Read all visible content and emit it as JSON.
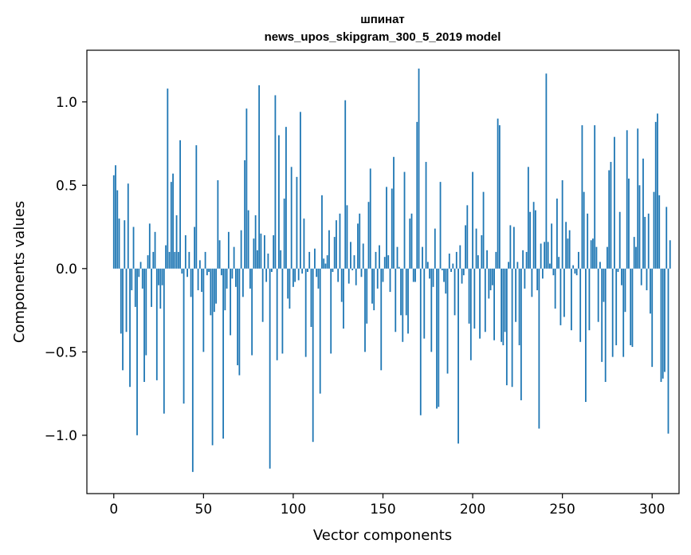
{
  "chart_data": {
    "type": "bar",
    "title_line1": "шпинат",
    "title_line2": "news_upos_skipgram_300_5_2019 model",
    "xlabel": "Vector components",
    "ylabel": "Components values",
    "xlim": [
      -15,
      315
    ],
    "ylim": [
      -1.35,
      1.31
    ],
    "xticks": [
      0,
      50,
      100,
      150,
      200,
      250,
      300
    ],
    "xtick_labels": [
      "0",
      "50",
      "100",
      "150",
      "200",
      "250",
      "300"
    ],
    "yticks": [
      1.0,
      0.5,
      0.0,
      -0.5,
      -1.0
    ],
    "ytick_labels": [
      "1.0",
      "0.5",
      "0.0",
      "−0.5",
      "−1.0"
    ],
    "bar_color": "#1f77b4",
    "values": [
      0.56,
      0.62,
      0.47,
      0.3,
      -0.39,
      -0.61,
      0.29,
      -0.38,
      0.51,
      -0.71,
      -0.13,
      0.25,
      -0.23,
      -1.0,
      -0.05,
      0.04,
      -0.12,
      -0.68,
      -0.52,
      0.08,
      0.27,
      -0.23,
      0.1,
      0.22,
      -0.67,
      -0.1,
      -0.24,
      -0.1,
      -0.87,
      0.14,
      1.08,
      0.1,
      0.52,
      0.57,
      0.1,
      0.32,
      0.1,
      0.77,
      -0.03,
      -0.81,
      0.2,
      -0.05,
      0.1,
      -0.17,
      -1.22,
      0.25,
      0.74,
      -0.13,
      0.05,
      -0.14,
      -0.5,
      0.1,
      -0.04,
      -0.02,
      -0.28,
      -1.06,
      -0.26,
      -0.21,
      0.53,
      0.17,
      -0.04,
      -1.02,
      -0.25,
      -0.12,
      0.22,
      -0.4,
      -0.06,
      0.13,
      -0.11,
      -0.58,
      -0.64,
      0.23,
      -0.17,
      0.65,
      0.96,
      0.35,
      -0.12,
      -0.52,
      0.18,
      0.32,
      0.11,
      1.1,
      0.21,
      -0.32,
      0.2,
      -0.08,
      0.09,
      -1.2,
      -0.02,
      0.2,
      1.04,
      -0.55,
      0.8,
      0.11,
      -0.51,
      0.42,
      0.85,
      -0.18,
      -0.24,
      0.61,
      -0.11,
      -0.08,
      0.55,
      -0.07,
      0.94,
      -0.03,
      0.3,
      -0.53,
      -0.02,
      0.1,
      -0.35,
      -1.04,
      0.12,
      -0.05,
      -0.12,
      -0.75,
      0.44,
      0.06,
      0.03,
      0.08,
      0.23,
      -0.51,
      -0.02,
      0.19,
      0.29,
      -0.08,
      0.33,
      -0.2,
      -0.36,
      1.01,
      0.38,
      -0.09,
      0.16,
      -0.01,
      0.08,
      -0.1,
      0.27,
      0.33,
      -0.05,
      0.15,
      -0.5,
      -0.33,
      0.4,
      0.6,
      -0.21,
      -0.25,
      0.1,
      -0.12,
      0.14,
      -0.61,
      -0.08,
      0.07,
      0.49,
      0.08,
      -0.14,
      0.48,
      0.67,
      -0.38,
      0.13,
      0.01,
      -0.28,
      -0.44,
      0.58,
      -0.28,
      -0.39,
      0.3,
      0.33,
      -0.08,
      -0.08,
      0.88,
      1.2,
      -0.88,
      0.13,
      -0.42,
      0.64,
      0.04,
      -0.06,
      -0.5,
      -0.11,
      0.24,
      -0.84,
      -0.83,
      0.52,
      -0.01,
      -0.08,
      -0.15,
      -0.63,
      0.09,
      -0.02,
      0.03,
      -0.28,
      0.1,
      -1.05,
      0.14,
      -0.09,
      -0.04,
      0.26,
      0.38,
      -0.33,
      -0.55,
      0.58,
      -0.36,
      0.24,
      0.08,
      -0.42,
      0.2,
      0.46,
      -0.38,
      0.11,
      -0.18,
      -0.13,
      -0.1,
      -0.43,
      0.1,
      0.9,
      0.86,
      -0.44,
      -0.46,
      -0.38,
      -0.7,
      0.04,
      0.26,
      -0.71,
      0.25,
      -0.32,
      0.04,
      -0.46,
      -0.79,
      0.11,
      -0.12,
      0.1,
      0.61,
      0.34,
      -0.17,
      0.4,
      0.35,
      -0.13,
      -0.96,
      0.15,
      -0.06,
      0.16,
      1.17,
      0.16,
      0.03,
      0.27,
      -0.04,
      -0.24,
      0.42,
      0.07,
      -0.34,
      0.53,
      -0.29,
      0.28,
      0.18,
      0.23,
      -0.37,
      0.02,
      -0.03,
      -0.04,
      0.1,
      -0.44,
      0.86,
      0.46,
      -0.8,
      0.33,
      -0.37,
      0.17,
      0.18,
      0.86,
      0.13,
      -0.32,
      0.04,
      -0.56,
      -0.2,
      -0.68,
      0.13,
      0.59,
      0.64,
      -0.53,
      0.79,
      -0.46,
      -0.02,
      0.34,
      -0.1,
      -0.53,
      -0.26,
      0.83,
      0.54,
      -0.46,
      -0.47,
      0.19,
      0.13,
      0.84,
      0.5,
      -0.1,
      0.66,
      0.31,
      -0.13,
      0.33,
      -0.27,
      -0.59,
      0.46,
      0.88,
      0.93,
      0.44,
      -0.68,
      -0.66,
      -0.62,
      0.37,
      -0.99,
      0.17
    ]
  }
}
